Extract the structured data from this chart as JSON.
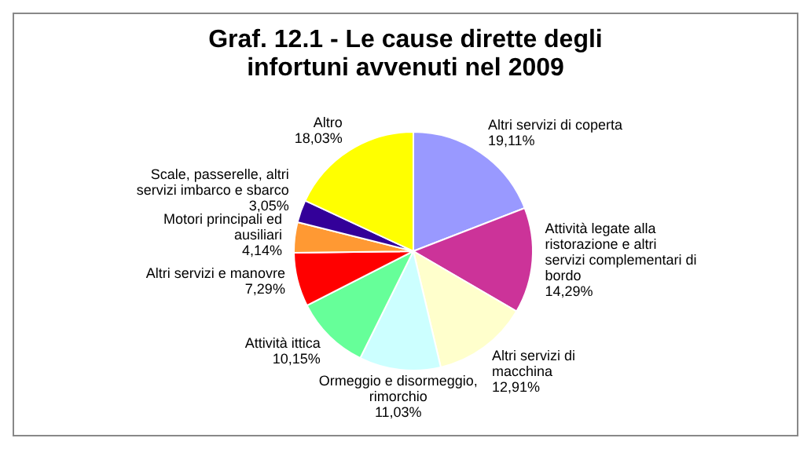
{
  "chart_data": {
    "type": "pie",
    "title": "Graf. 12.1 - Le cause dirette degli infortuni avvenuti nel 2009",
    "categories": [
      "Altri servizi di coperta",
      "Attività legate alla ristorazione e altri servizi complementari di bordo",
      "Altri servizi di macchina",
      "Ormeggio e disormeggio, rimorchio",
      "Attività ittica",
      "Altri servizi e manovre",
      "Motori principali ed ausiliari",
      "Scale, passerelle, altri servizi imbarco e sbarco",
      "Altro"
    ],
    "values": [
      19.11,
      14.29,
      12.91,
      11.03,
      10.15,
      7.29,
      4.14,
      3.05,
      18.03
    ],
    "value_labels": [
      "19,11%",
      "14,29%",
      "12,91%",
      "11,03%",
      "10,15%",
      "7,29%",
      "4,14%",
      "3,05%",
      "18,03%"
    ],
    "colors": [
      "#9999ff",
      "#cc3399",
      "#ffffcc",
      "#ccffff",
      "#66ff99",
      "#ff0000",
      "#ff9933",
      "#330099",
      "#ffff00"
    ],
    "legend": false
  }
}
